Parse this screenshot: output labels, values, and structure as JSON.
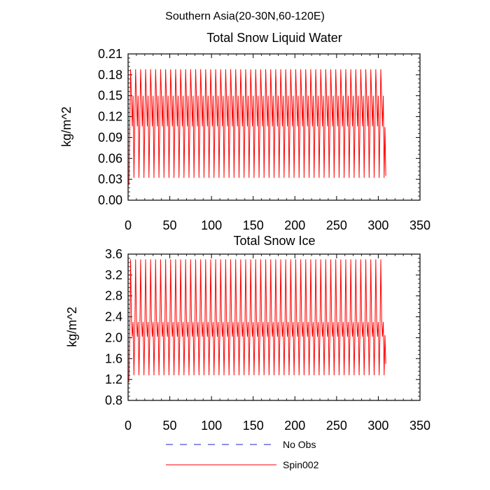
{
  "figure": {
    "main_title": "Southern Asia(20-30N,60-120E)"
  },
  "legend": {
    "items": [
      {
        "label": "No Obs",
        "color": "#2222cc",
        "dash": true
      },
      {
        "label": "Spin002",
        "color": "#ff0000",
        "dash": false
      }
    ]
  },
  "chart_data": [
    {
      "type": "line",
      "title": "Total Snow Liquid Water",
      "xlabel": "",
      "ylabel": "kg/m^2",
      "xlim": [
        0,
        350
      ],
      "ylim": [
        0,
        0.21
      ],
      "x_ticks": [
        0,
        50,
        100,
        150,
        200,
        250,
        300,
        350
      ],
      "y_ticks": [
        0.0,
        0.03,
        0.06,
        0.09,
        0.12,
        0.15,
        0.18,
        0.21
      ],
      "y_tick_labels": [
        "0.00",
        "0.03",
        "0.06",
        "0.09",
        "0.12",
        "0.15",
        "0.18",
        "0.21"
      ],
      "grid": false,
      "series": [
        {
          "name": "Spin002",
          "color": "#ff0000",
          "x_start": 1,
          "x_end": 309,
          "cycle_length": 6,
          "cycle_profile": [
            0.032,
            0.105,
            0.188,
            0.148,
            0.106,
            0.15
          ],
          "start_value": 0.022,
          "end_value": 0.035
        }
      ]
    },
    {
      "type": "line",
      "title": "Total Snow Ice",
      "xlabel": "",
      "ylabel": "kg/m^2",
      "xlim": [
        0,
        350
      ],
      "ylim": [
        0.8,
        3.6
      ],
      "x_ticks": [
        0,
        50,
        100,
        150,
        200,
        250,
        300,
        350
      ],
      "y_ticks": [
        0.8,
        1.2,
        1.6,
        2.0,
        2.4,
        2.8,
        3.2,
        3.6
      ],
      "y_tick_labels": [
        "0.8",
        "1.2",
        "1.6",
        "2.0",
        "2.4",
        "2.8",
        "3.2",
        "3.6"
      ],
      "grid": false,
      "series": [
        {
          "name": "Spin002",
          "color": "#ff0000",
          "x_start": 1,
          "x_end": 309,
          "cycle_length": 6,
          "cycle_profile": [
            1.28,
            2.05,
            3.5,
            2.35,
            2.02,
            2.3
          ],
          "start_value": 1.15,
          "end_value": 1.5
        }
      ]
    }
  ]
}
